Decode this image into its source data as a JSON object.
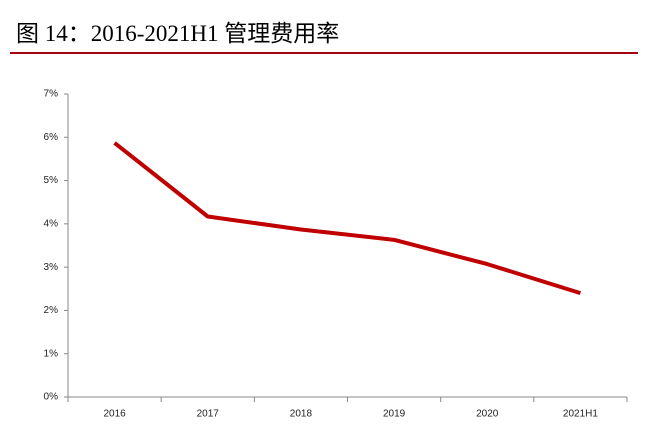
{
  "chart_data": {
    "type": "line",
    "title": "图 14：2016-2021H1 管理费用率",
    "categories": [
      "2016",
      "2017",
      "2018",
      "2019",
      "2020",
      "2021H1"
    ],
    "values": [
      5.87,
      4.17,
      3.87,
      3.63,
      3.07,
      2.4
    ],
    "color": "#c00000",
    "ylim": [
      0,
      7
    ],
    "yticks": [
      {
        "value": 0,
        "label": "0%"
      },
      {
        "value": 1,
        "label": "1%"
      },
      {
        "value": 2,
        "label": "2%"
      },
      {
        "value": 3,
        "label": "3%"
      },
      {
        "value": 4,
        "label": "4%"
      },
      {
        "value": 5,
        "label": "5%"
      },
      {
        "value": 6,
        "label": "6%"
      },
      {
        "value": 7,
        "label": "7%"
      }
    ],
    "grid": false
  }
}
